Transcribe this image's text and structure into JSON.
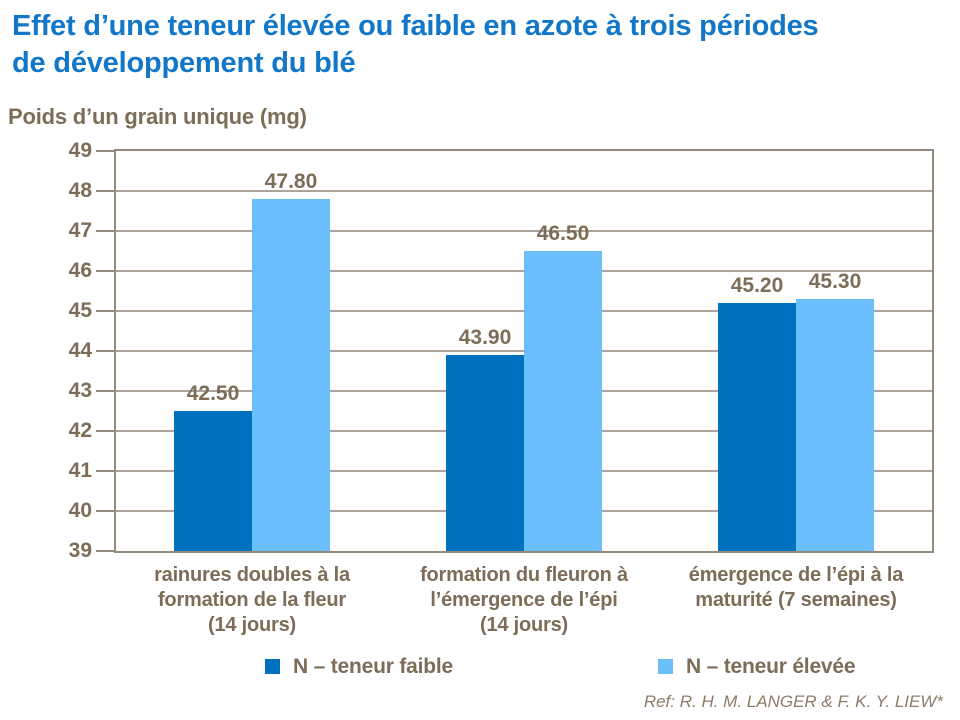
{
  "slide_title": {
    "lines": [
      "Effet d’une teneur élevée ou faible en azote à trois périodes",
      "de développement du blé"
    ]
  },
  "y_axis_title": "Poids d’un grain unique (mg)",
  "reference": "Ref: R. H. M. LANGER & F. K. Y. LIEW*",
  "colors": {
    "title_blue": "#1277C8",
    "label_brown": "#7D6D57",
    "reference_brown": "#8C7C66",
    "series_low_blue": "#0071BF",
    "series_high_blue": "#6CBEFA",
    "gridline": "#ADA499",
    "plot_border": "#948B7D"
  },
  "chart_data": {
    "type": "bar",
    "title": "Effet d’une teneur élevée ou faible en azote à trois périodes de développement du blé",
    "ylabel": "Poids d’un grain unique (mg)",
    "xlabel": "",
    "ylim": [
      39,
      49
    ],
    "ytick_step": 1,
    "yticks": [
      "39",
      "40",
      "41",
      "42",
      "43",
      "44",
      "45",
      "46",
      "47",
      "48",
      "49"
    ],
    "grid": true,
    "legend_position": "bottom",
    "categories": [
      "rainures doubles à la formation de la fleur (14 jours)",
      "formation du fleuron à l’émergence de l’épi (14 jours)",
      "émergence de l’épi à la maturité (7 semaines)"
    ],
    "categories_display_lines": [
      [
        "rainures doubles à la",
        "formation de la fleur",
        "(14 jours)"
      ],
      [
        "formation du fleuron à",
        "l’émergence de l’épi",
        "(14 jours)"
      ],
      [
        "émergence de l’épi à la",
        "maturité (7 semaines)"
      ]
    ],
    "series": [
      {
        "name": "N – teneur faible",
        "color": "#0071BF",
        "values": [
          42.5,
          43.9,
          45.2
        ],
        "value_labels": [
          "42.50",
          "43.90",
          "45.20"
        ]
      },
      {
        "name": "N – teneur élevée",
        "color": "#6CBEFA",
        "values": [
          47.8,
          46.5,
          45.3
        ],
        "value_labels": [
          "47.80",
          "46.50",
          "45.30"
        ]
      }
    ]
  }
}
